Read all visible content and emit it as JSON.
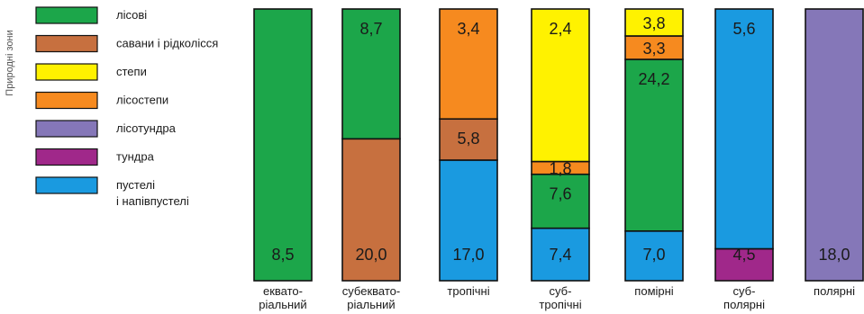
{
  "chart_data": {
    "type": "bar",
    "stacked": true,
    "ylabel": "Природні зони",
    "categories": [
      [
        "еквато-",
        "ріальний"
      ],
      [
        "субеквато-",
        "ріальний"
      ],
      [
        "тропічні"
      ],
      [
        "суб-",
        "тропічні"
      ],
      [
        "помірні"
      ],
      [
        "суб-",
        "полярні"
      ],
      [
        "полярні"
      ]
    ],
    "series": [
      {
        "key": "forest",
        "name": "лісові",
        "color": "#1ca64a"
      },
      {
        "key": "savanna",
        "name": "савани і рідколісся",
        "color": "#c7703f"
      },
      {
        "key": "steppe",
        "name": "степи",
        "color": "#fff200"
      },
      {
        "key": "forest_steppe",
        "name": "лісостепи",
        "color": "#f68a1f"
      },
      {
        "key": "forest_tundra",
        "name": "лісотундра",
        "color": "#8577b8"
      },
      {
        "key": "tundra",
        "name": "тундра",
        "color": "#a0288a"
      },
      {
        "key": "desert",
        "name": [
          "пустелі",
          "і напівпустелі"
        ],
        "color": "#1a9ae0"
      }
    ],
    "stacks": [
      [
        {
          "series": "forest",
          "value": 8.5,
          "label": "8,5"
        }
      ],
      [
        {
          "series": "savanna",
          "value": 20.0,
          "label": "20,0"
        },
        {
          "series": "forest",
          "value": 8.7,
          "label": "8,7"
        }
      ],
      [
        {
          "series": "desert",
          "value": 17.0,
          "label": "17,0"
        },
        {
          "series": "savanna",
          "value": 5.8,
          "label": "5,8"
        },
        {
          "series": "forest_steppe",
          "value": 3.4,
          "label": "3,4"
        }
      ],
      [
        {
          "series": "desert",
          "value": 7.4,
          "label": "7,4"
        },
        {
          "series": "forest",
          "value": 7.6,
          "label": "7,6"
        },
        {
          "series": "forest_steppe",
          "value": 1.8,
          "label": "1,8"
        },
        {
          "series": "steppe",
          "value": 2.4,
          "label": "2,4"
        }
      ],
      [
        {
          "series": "desert",
          "value": 7.0,
          "label": "7,0"
        },
        {
          "series": "forest",
          "value": 24.2,
          "label": "24,2"
        },
        {
          "series": "forest_steppe",
          "value": 3.3,
          "label": "3,3"
        },
        {
          "series": "steppe",
          "value": 3.8,
          "label": "3,8"
        }
      ],
      [
        {
          "series": "tundra",
          "value": 4.5,
          "label": "4,5"
        },
        {
          "series": "desert",
          "value": 5.6,
          "label": "5,6"
        }
      ],
      [
        {
          "series": "forest_tundra",
          "value": 18.0,
          "label": "18,0"
        }
      ]
    ]
  }
}
